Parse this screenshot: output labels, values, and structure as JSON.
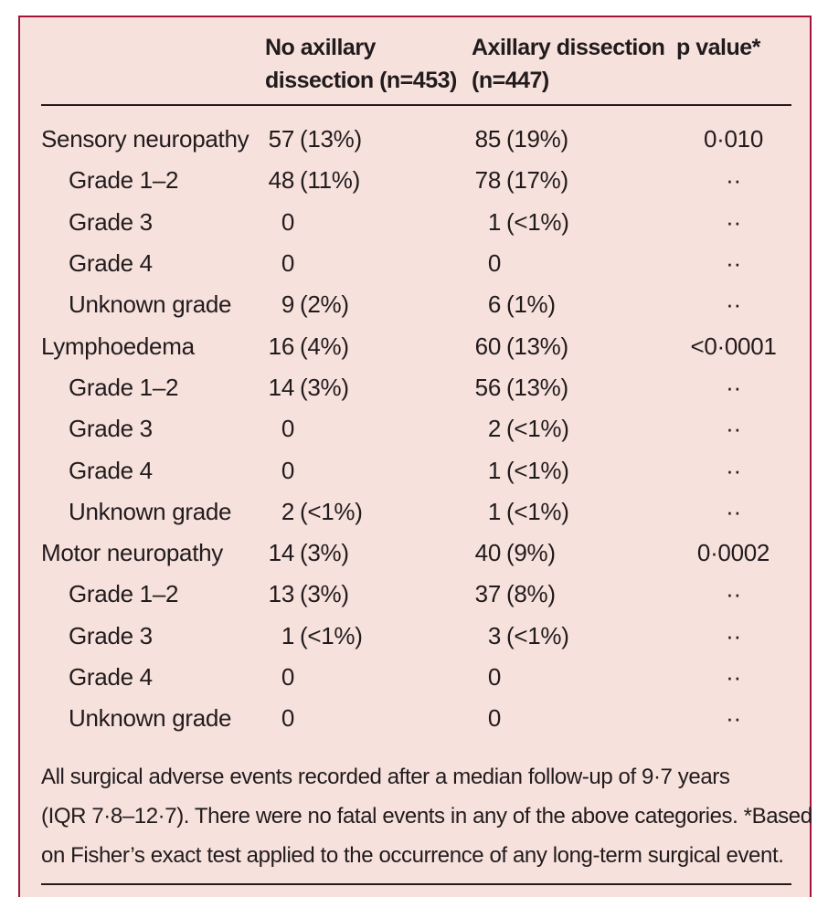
{
  "panel": {
    "background_color": "#f7e1dc",
    "border_color": "#a41438",
    "text_color": "#211b1d"
  },
  "table": {
    "header": {
      "col2_line1": "No axillary",
      "col2_line2": "dissection (n=453)",
      "col3_line1": "Axillary dissection",
      "col3_line2": "(n=447)",
      "col4": "p value*"
    },
    "rows": [
      {
        "label": "Sensory neuropathy",
        "indent": false,
        "c2n": "57",
        "c2p": "(13%)",
        "c3n": "85",
        "c3p": "(19%)",
        "p": "0·010"
      },
      {
        "label": "Grade 1–2",
        "indent": true,
        "c2n": "48",
        "c2p": "(11%)",
        "c3n": "78",
        "c3p": "(17%)",
        "p": "··"
      },
      {
        "label": "Grade 3",
        "indent": true,
        "c2n": "0",
        "c2p": "",
        "c3n": "1",
        "c3p": "(<1%)",
        "p": "··"
      },
      {
        "label": "Grade 4",
        "indent": true,
        "c2n": "0",
        "c2p": "",
        "c3n": "0",
        "c3p": "",
        "p": "··"
      },
      {
        "label": "Unknown grade",
        "indent": true,
        "c2n": "9",
        "c2p": "(2%)",
        "c3n": "6",
        "c3p": "(1%)",
        "p": "··"
      },
      {
        "label": "Lymphoedema",
        "indent": false,
        "c2n": "16",
        "c2p": "(4%)",
        "c3n": "60",
        "c3p": "(13%)",
        "p": "<0·0001"
      },
      {
        "label": "Grade 1–2",
        "indent": true,
        "c2n": "14",
        "c2p": "(3%)",
        "c3n": "56",
        "c3p": "(13%)",
        "p": "··"
      },
      {
        "label": "Grade 3",
        "indent": true,
        "c2n": "0",
        "c2p": "",
        "c3n": "2",
        "c3p": "(<1%)",
        "p": "··"
      },
      {
        "label": "Grade 4",
        "indent": true,
        "c2n": "0",
        "c2p": "",
        "c3n": "1",
        "c3p": "(<1%)",
        "p": "··"
      },
      {
        "label": "Unknown grade",
        "indent": true,
        "c2n": "2",
        "c2p": "(<1%)",
        "c3n": "1",
        "c3p": "(<1%)",
        "p": "··"
      },
      {
        "label": "Motor neuropathy",
        "indent": false,
        "c2n": "14",
        "c2p": "(3%)",
        "c3n": "40",
        "c3p": "(9%)",
        "p": "0·0002"
      },
      {
        "label": "Grade 1–2",
        "indent": true,
        "c2n": "13",
        "c2p": "(3%)",
        "c3n": "37",
        "c3p": "(8%)",
        "p": "··"
      },
      {
        "label": "Grade 3",
        "indent": true,
        "c2n": "1",
        "c2p": "(<1%)",
        "c3n": "3",
        "c3p": "(<1%)",
        "p": "··"
      },
      {
        "label": "Grade 4",
        "indent": true,
        "c2n": "0",
        "c2p": "",
        "c3n": "0",
        "c3p": "",
        "p": "··"
      },
      {
        "label": "Unknown grade",
        "indent": true,
        "c2n": "0",
        "c2p": "",
        "c3n": "0",
        "c3p": "",
        "p": "··"
      }
    ]
  },
  "footnote": {
    "lines": [
      "All surgical adverse events recorded after a median follow-up of 9·7 years",
      "(IQR 7·8–12·7). There were no fatal events in any of the above categories. *Based",
      "on Fisher’s exact test applied to the occurrence of any long-term surgical event."
    ],
    "full_text": "All surgical adverse events recorded after a median follow-up of 9·7 years (IQR 7·8–12·7). There were no fatal events in any of the above categories. *Based on Fisher’s exact test applied to the occurrence of any long-term surgical event."
  }
}
